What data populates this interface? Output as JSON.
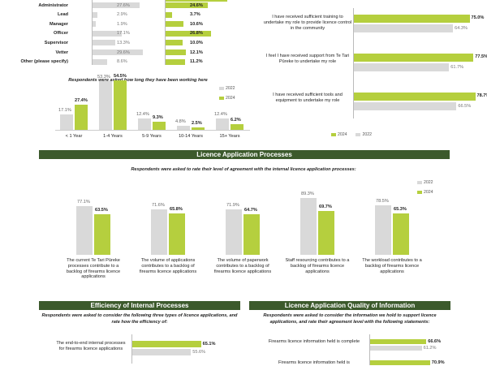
{
  "colors": {
    "y2022": "#d9d9d9",
    "y2024": "#b5cf3e",
    "banner": "#3c5a2c"
  },
  "roles_chart": {
    "rows": [
      {
        "label": "Administrator",
        "v2022": "27.6%",
        "v2024": "24.6%",
        "n2022": 27.6,
        "n2024": 24.6
      },
      {
        "label": "Lead",
        "v2022": "2.9%",
        "v2024": "3.7%",
        "n2022": 2.9,
        "n2024": 3.7
      },
      {
        "label": "Manager",
        "v2022": "1.9%",
        "v2024": "10.6%",
        "n2022": 1.9,
        "n2024": 10.6
      },
      {
        "label": "Officer",
        "v2022": "17.1%",
        "v2024": "26.8%",
        "n2022": 17.1,
        "n2024": 26.8
      },
      {
        "label": "Supervisor",
        "v2022": "13.3%",
        "v2024": "10.0%",
        "n2022": 13.3,
        "n2024": 10.0
      },
      {
        "label": "Vetter",
        "v2022": "29.6%",
        "v2024": "12.1%",
        "n2022": 29.6,
        "n2024": 12.1
      },
      {
        "label": "Other (please specify)",
        "v2022": "8.6%",
        "v2024": "11.2%",
        "n2022": 8.6,
        "n2024": 11.2
      }
    ]
  },
  "tenure_chart": {
    "note": "Respondents were asked how long they have been working here",
    "legend": [
      "2022",
      "2024"
    ],
    "categories": [
      "< 1 Year",
      "1-4 Years",
      "5-9 Years",
      "10-14 Years",
      "15+ Years"
    ],
    "v2022": [
      17.1,
      53.3,
      12.4,
      4.8,
      12.4
    ],
    "v2024": [
      27.4,
      54.5,
      9.3,
      2.5,
      6.2
    ],
    "l2022": [
      "17.1%",
      "53.3%",
      "12.4%",
      "4.8%",
      "12.4%"
    ],
    "l2024": [
      "27.4%",
      "54.5%",
      "9.3%",
      "2.5%",
      "6.2%"
    ]
  },
  "training_chart": {
    "items": [
      {
        "label": "I have received sufficient training to undertake my role to provide licence control in the community",
        "v2024": 75.0,
        "v2022": 64.3,
        "l2024": "75.0%",
        "l2022": "64.3%"
      },
      {
        "label": "I feel I have received support from Te Tari Pūreke to undertake my role",
        "v2024": 77.5,
        "v2022": 61.7,
        "l2024": "77.5%",
        "l2022": "61.7%"
      },
      {
        "label": "I have received sufficient tools and equipment to undertake my role",
        "v2024": 78.7,
        "v2022": 66.5,
        "l2024": "78.7%",
        "l2022": "66.5%"
      }
    ],
    "legend": [
      "2024",
      "2022"
    ]
  },
  "licence_section": {
    "banner": "Licence Application Processes",
    "note": "Respondents were asked to rate their level of agreement with the internal licence application processes:",
    "legend": [
      "2022",
      "2024"
    ],
    "categories": [
      "The current Te Tari Pūreke processes contribute to a backlog of firearms licence applications",
      "The volume of applications contributes to a backlog of firearms licence applications",
      "The volume of paperwork contributes to a backlog of firearms licence applications",
      "Staff resourcing contributes to a backlog of firearms licence applications",
      "The workload contributes to a backlog of firearms licence applications"
    ],
    "v2022": [
      77.1,
      71.6,
      71.9,
      89.3,
      78.5
    ],
    "v2024": [
      63.5,
      65.8,
      64.7,
      69.7,
      65.3
    ],
    "l2022": [
      "77.1%",
      "71.6%",
      "71.9%",
      "89.3%",
      "78.5%"
    ],
    "l2024": [
      "63.5%",
      "65.8%",
      "64.7%",
      "69.7%",
      "65.3%"
    ]
  },
  "efficiency_section": {
    "banner": "Efficiency of Internal Processes",
    "note": "Respondents were asked to consider the following three types of licence applications, and rate how the efficiency of:",
    "items": [
      {
        "label": "The end-to-end internal processes for firearms licence applications",
        "v2024": 65.1,
        "v2022": 55.6,
        "l2024": "65.1%",
        "l2022": "55.6%"
      }
    ]
  },
  "quality_section": {
    "banner": "Licence Application Quality of Information",
    "note": "Respondents were asked to consider the information we hold to support licence applications, and rate their agreement level with the following statements:",
    "items": [
      {
        "label": "Firearms licence information held is complete",
        "v2024": 66.6,
        "v2022": 61.2,
        "l2024": "66.6%",
        "l2022": "61.2%"
      },
      {
        "label": "Firearms licence information held is",
        "v2024": 70.9,
        "v2022": 0,
        "l2024": "70.9%",
        "l2022": ""
      }
    ]
  }
}
